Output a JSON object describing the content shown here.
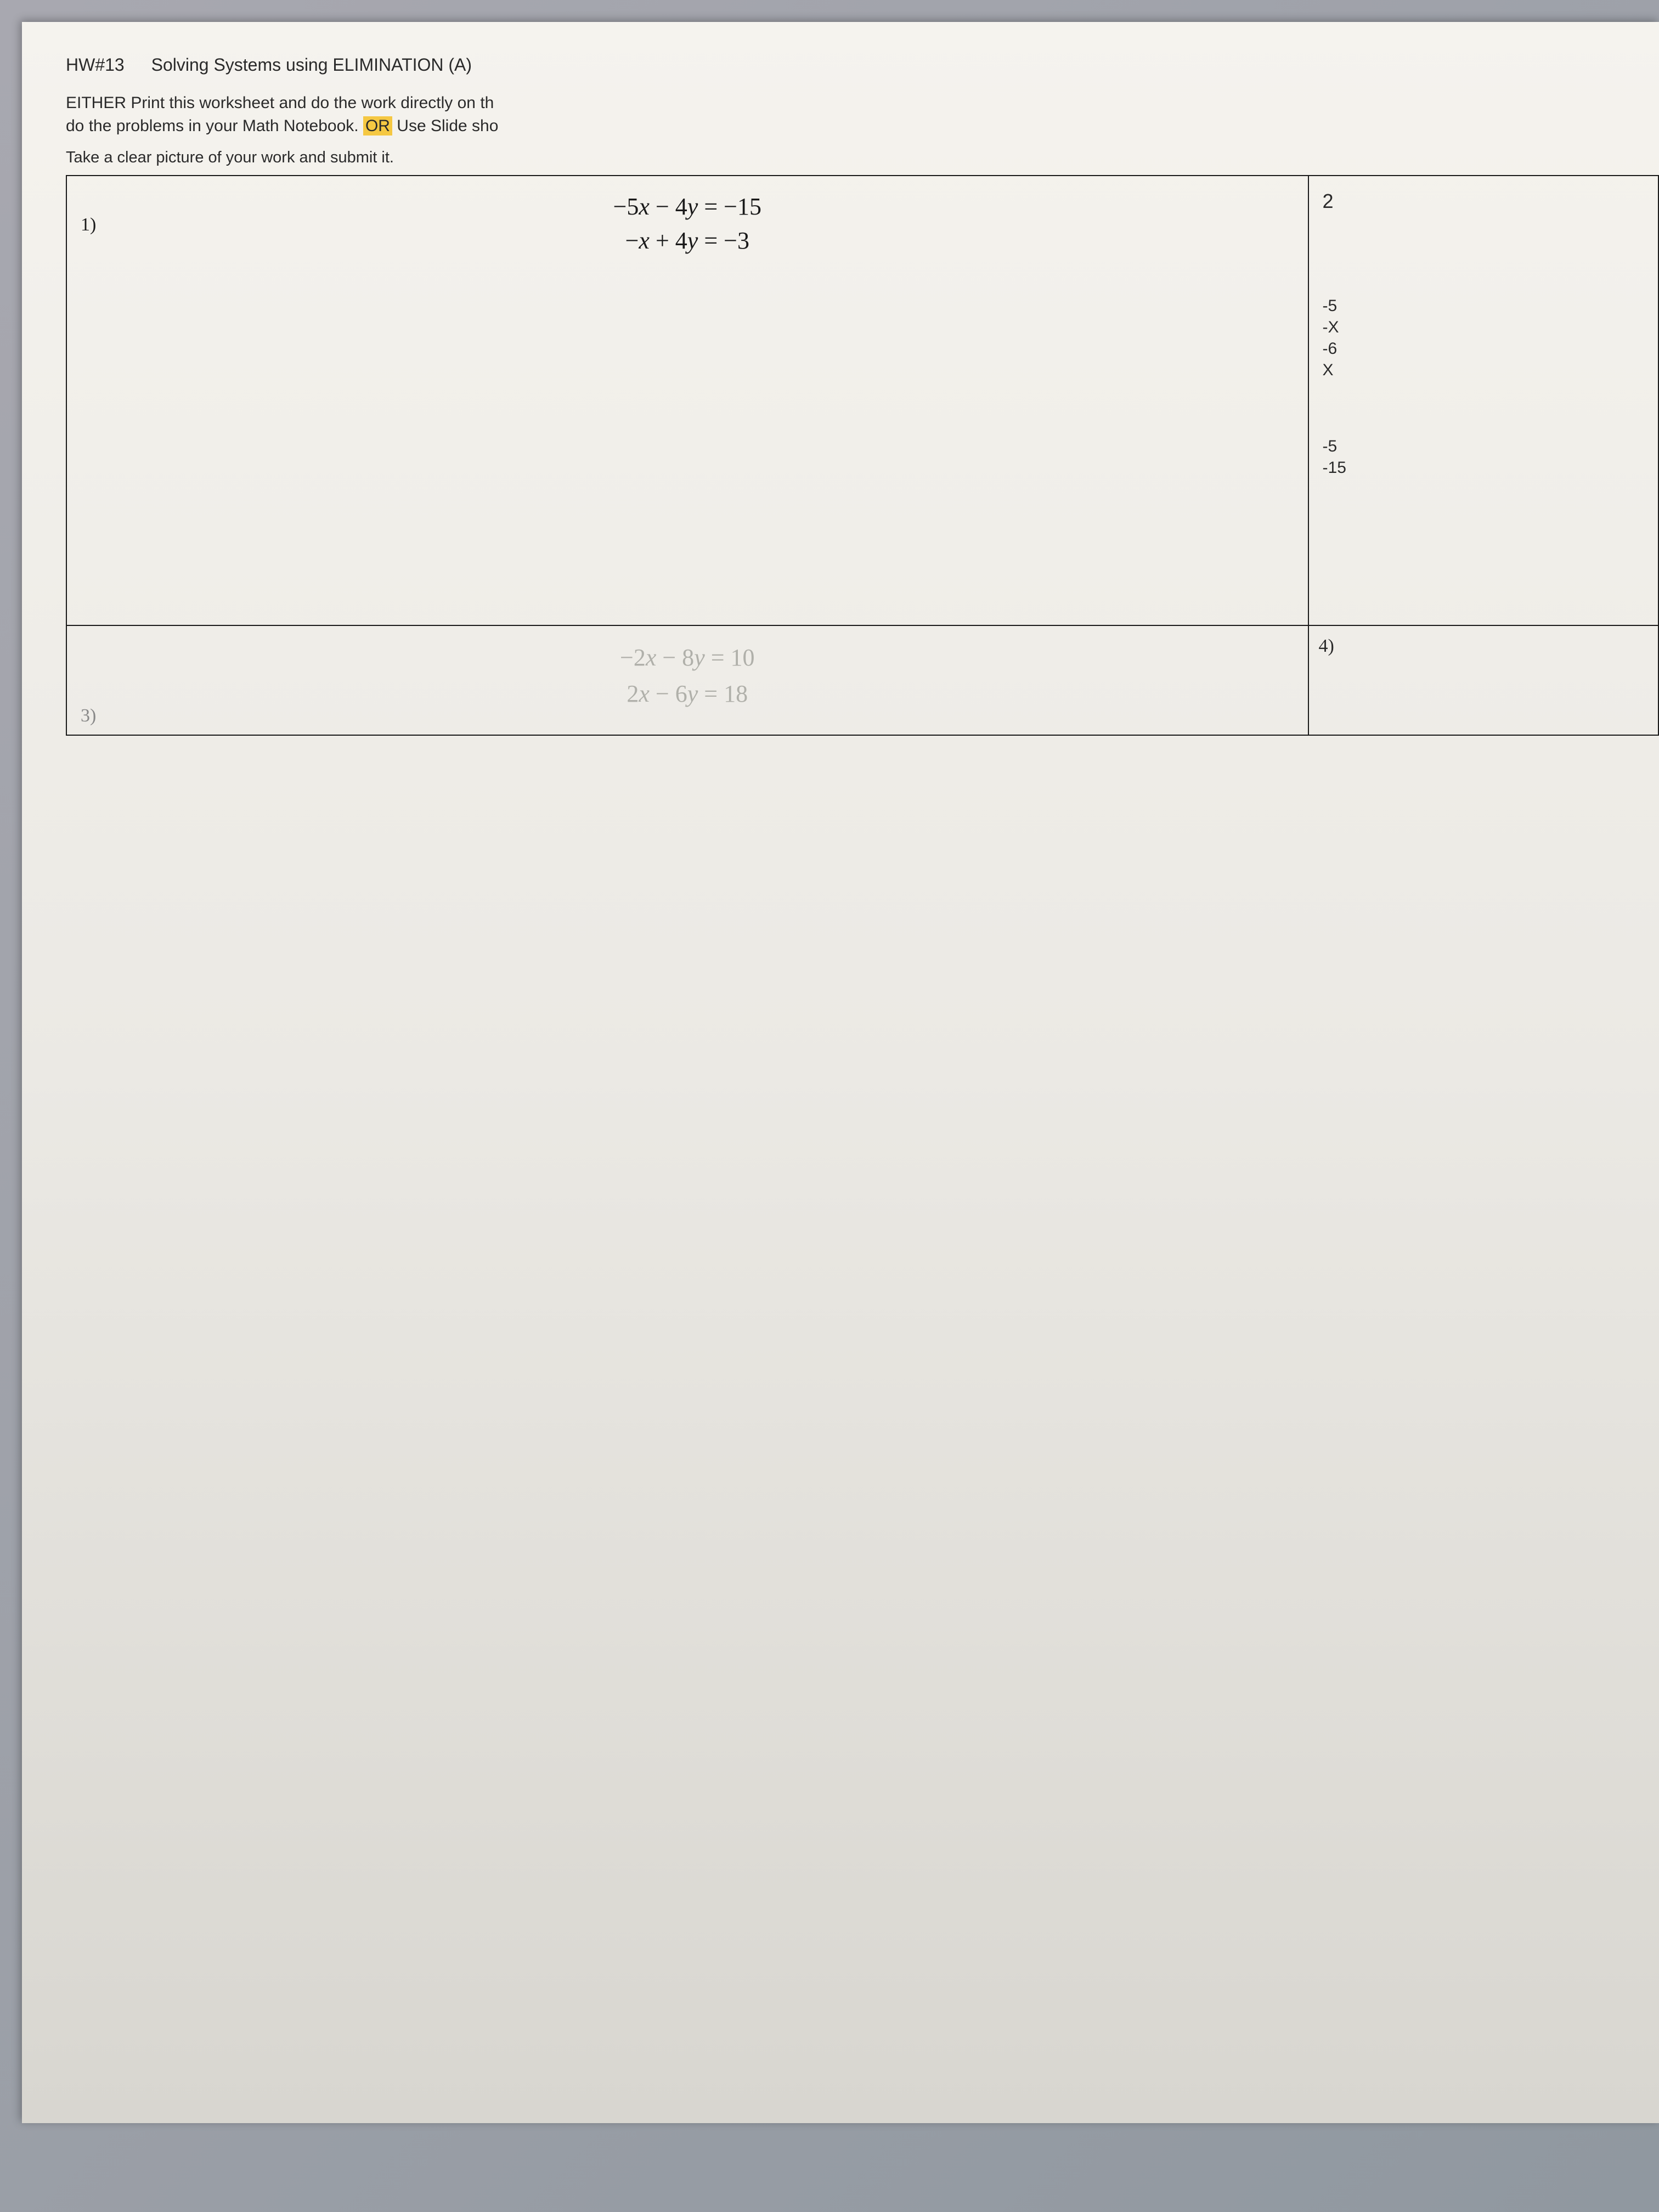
{
  "header": {
    "hw_label": "HW#13",
    "title": "Solving Systems using ELIMINATION (A)"
  },
  "instructions": {
    "line1_part1": "EITHER Print this worksheet and do the work directly on th",
    "line2_part1": "do the problems in your Math Notebook. ",
    "line2_highlight": "OR",
    "line2_part2": " Use Slide sho",
    "picture_line": "Take a clear picture of your work and submit it."
  },
  "problems": {
    "p1": {
      "number": "1)",
      "eq1": "−5x − 4y = −15",
      "eq2": "−x + 4y = −3"
    },
    "p3": {
      "number": "3)",
      "eq1": "−2x − 8y = 10",
      "eq2": "2x − 6y = 18"
    },
    "p2_partial": "2",
    "p4_number": "4)"
  },
  "side_work": {
    "block1": {
      "l1": "-5",
      "l2": "-X",
      "l3": "-6",
      "l4": "X"
    },
    "block2": {
      "l1": "-5",
      "l2": "-15"
    }
  },
  "colors": {
    "page_bg_top": "#f5f3ee",
    "page_bg_bottom": "#d8d6d0",
    "body_bg": "#9098a0",
    "text": "#2a2a2a",
    "border": "#1a1a1a",
    "highlight": "#f5c842",
    "faded_text": "#b0b0aa"
  },
  "fonts": {
    "body_family": "Arial, Helvetica, sans-serif",
    "math_family": "Times New Roman, serif",
    "header_size": 32,
    "instruction_size": 30,
    "equation_size": 44,
    "problem_num_size": 34
  }
}
